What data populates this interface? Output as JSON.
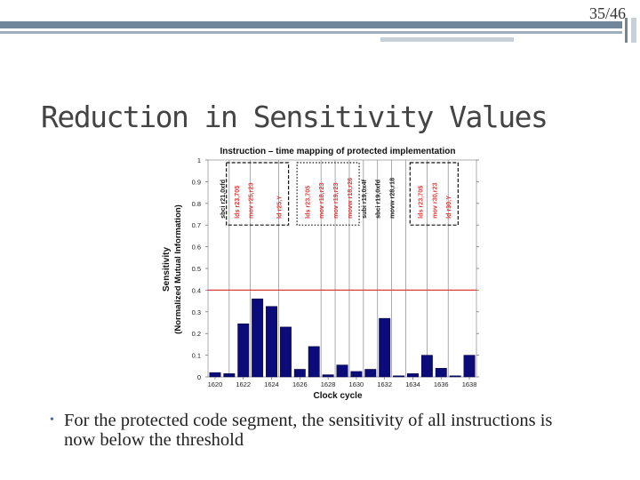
{
  "slide": {
    "number": "35/46",
    "title": "Reduction in Sensitivity Values"
  },
  "bullet": {
    "text": "For the protected code segment, the sensitivity of all instructions is now below the threshold"
  },
  "colors": {
    "bar": "#0b0b7a",
    "threshold": "#e03a3a",
    "accent_blue": "#3e6ba6"
  },
  "chart_data": {
    "type": "bar",
    "title": "Instruction – time mapping of protected implementation",
    "xlabel": "Clock cycle",
    "ylabel": [
      "Sensitivity",
      "(Normalized Mutual Information)"
    ],
    "x": [
      1620,
      1621,
      1622,
      1623,
      1624,
      1625,
      1626,
      1627,
      1628,
      1629,
      1630,
      1631,
      1632,
      1633,
      1634,
      1635,
      1636,
      1637,
      1638
    ],
    "values": [
      0.02,
      0.015,
      0.245,
      0.36,
      0.325,
      0.23,
      0.035,
      0.14,
      0.01,
      0.055,
      0.025,
      0.035,
      0.27,
      0.005,
      0.015,
      0.1,
      0.04,
      0.005,
      0.1
    ],
    "xticks": [
      1620,
      1622,
      1624,
      1626,
      1628,
      1630,
      1632,
      1634,
      1636,
      1638
    ],
    "yticks": [
      "0",
      "0.1",
      "0.2",
      "0.3",
      "0.4",
      "0.5",
      "0.6",
      "0.7",
      "0.8",
      "0.9",
      "1"
    ],
    "ylim": [
      0,
      1
    ],
    "threshold": 0.4,
    "annotations": [
      {
        "text": "sbci r21,0xfd",
        "x": 1620.5,
        "color": "#222222"
      },
      {
        "text": "lds r23,705",
        "x": 1621.5,
        "color": "#e03a3a"
      },
      {
        "text": "mov r25,r23",
        "x": 1622.5,
        "color": "#e03a3a"
      },
      {
        "text": "ld r25,Y",
        "x": 1624.5,
        "color": "#e03a3a"
      },
      {
        "text": "lds r23,705",
        "x": 1626.5,
        "color": "#e03a3a"
      },
      {
        "text": "mov r18,r23",
        "x": 1627.5,
        "color": "#e03a3a"
      },
      {
        "text": "mov r19,r23",
        "x": 1628.5,
        "color": "#e03a3a"
      },
      {
        "text": "movw r18,r26",
        "x": 1629.5,
        "color": "#e03a3a"
      },
      {
        "text": "subi r19,0x4f",
        "x": 1630.5,
        "color": "#222222"
      },
      {
        "text": "sbci r19,0xfd",
        "x": 1631.5,
        "color": "#222222"
      },
      {
        "text": "movw r28,r18",
        "x": 1632.5,
        "color": "#222222"
      },
      {
        "text": "lds r23,705",
        "x": 1634.5,
        "color": "#e03a3a"
      },
      {
        "text": "mov r30,r23",
        "x": 1635.5,
        "color": "#e03a3a"
      },
      {
        "text": "ld r30,Y",
        "x": 1636.5,
        "color": "#e03a3a"
      }
    ],
    "vlines": [
      1621,
      1622.5,
      1624.5,
      1627.5,
      1628.5,
      1629.5,
      1630.5,
      1631.5,
      1632.5,
      1633.5,
      1635,
      1636.5
    ],
    "dashed_boxes": [
      {
        "style": "dashed",
        "x0": 1620.8,
        "x1": 1625.2
      },
      {
        "style": "dotted",
        "x0": 1625.8,
        "x1": 1630.2
      },
      {
        "style": "dashed",
        "x0": 1633.8,
        "x1": 1637.2
      }
    ]
  }
}
